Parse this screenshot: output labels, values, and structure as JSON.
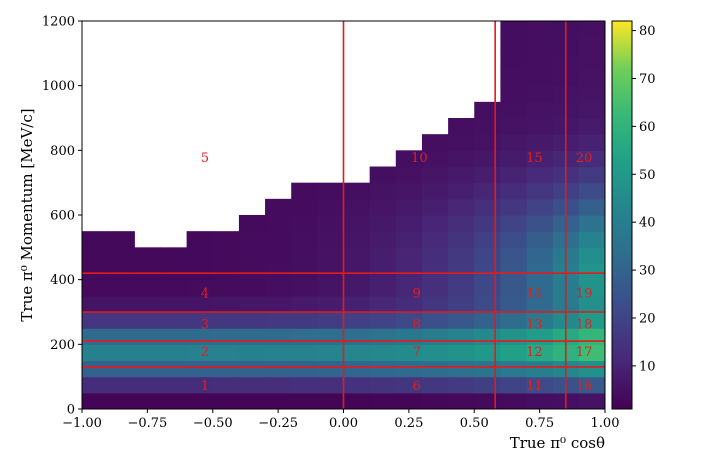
{
  "chart_data": {
    "type": "heatmap",
    "xlabel": "True π⁰ cosθ",
    "ylabel": "True π⁰ Momentum [MeV/c]",
    "xlim": [
      -1.0,
      1.0
    ],
    "ylim": [
      0,
      1200
    ],
    "x_ticks": [
      "−1.00",
      "−0.75",
      "−0.50",
      "−0.25",
      "0.00",
      "0.25",
      "0.50",
      "0.75",
      "1.00"
    ],
    "y_ticks": [
      "0",
      "200",
      "400",
      "600",
      "800",
      "1000",
      "1200"
    ],
    "colorbar": {
      "colormap": "viridis",
      "min": 1,
      "max": 82,
      "ticks": [
        "10",
        "20",
        "30",
        "40",
        "50",
        "60",
        "70",
        "80"
      ]
    },
    "x_bin_edges": [
      -1.0,
      -0.9,
      -0.8,
      -0.7,
      -0.6,
      -0.5,
      -0.4,
      -0.3,
      -0.2,
      -0.1,
      0.0,
      0.1,
      0.2,
      0.3,
      0.4,
      0.5,
      0.6,
      0.7,
      0.8,
      0.9,
      1.0
    ],
    "y_bin_edges": [
      0,
      50,
      100,
      150,
      200,
      250,
      300,
      350,
      400,
      450,
      500,
      550,
      600,
      650,
      700,
      750,
      800,
      850,
      900,
      950,
      1000,
      1050,
      1100,
      1150,
      1200
    ],
    "boundaries": {
      "cos_theta": [
        0.0,
        0.58,
        0.85
      ],
      "momentum": [
        130,
        210,
        300,
        420
      ]
    },
    "region_labels": [
      {
        "label": "1",
        "x": -0.53,
        "y": 75
      },
      {
        "label": "2",
        "x": -0.53,
        "y": 180
      },
      {
        "label": "3",
        "x": -0.53,
        "y": 265
      },
      {
        "label": "4",
        "x": -0.53,
        "y": 360
      },
      {
        "label": "5",
        "x": -0.53,
        "y": 780
      },
      {
        "label": "6",
        "x": 0.28,
        "y": 75
      },
      {
        "label": "7",
        "x": 0.28,
        "y": 180
      },
      {
        "label": "8",
        "x": 0.28,
        "y": 265
      },
      {
        "label": "9",
        "x": 0.28,
        "y": 360
      },
      {
        "label": "10",
        "x": 0.29,
        "y": 780
      },
      {
        "label": "11",
        "x": 0.73,
        "y": 75
      },
      {
        "label": "12",
        "x": 0.73,
        "y": 180
      },
      {
        "label": "13",
        "x": 0.73,
        "y": 265
      },
      {
        "label": "14",
        "x": 0.73,
        "y": 360
      },
      {
        "label": "15",
        "x": 0.73,
        "y": 780
      },
      {
        "label": "16",
        "x": 0.92,
        "y": 75
      },
      {
        "label": "17",
        "x": 0.92,
        "y": 180
      },
      {
        "label": "18",
        "x": 0.92,
        "y": 265
      },
      {
        "label": "19",
        "x": 0.92,
        "y": 360
      },
      {
        "label": "20",
        "x": 0.92,
        "y": 780
      }
    ]
  }
}
